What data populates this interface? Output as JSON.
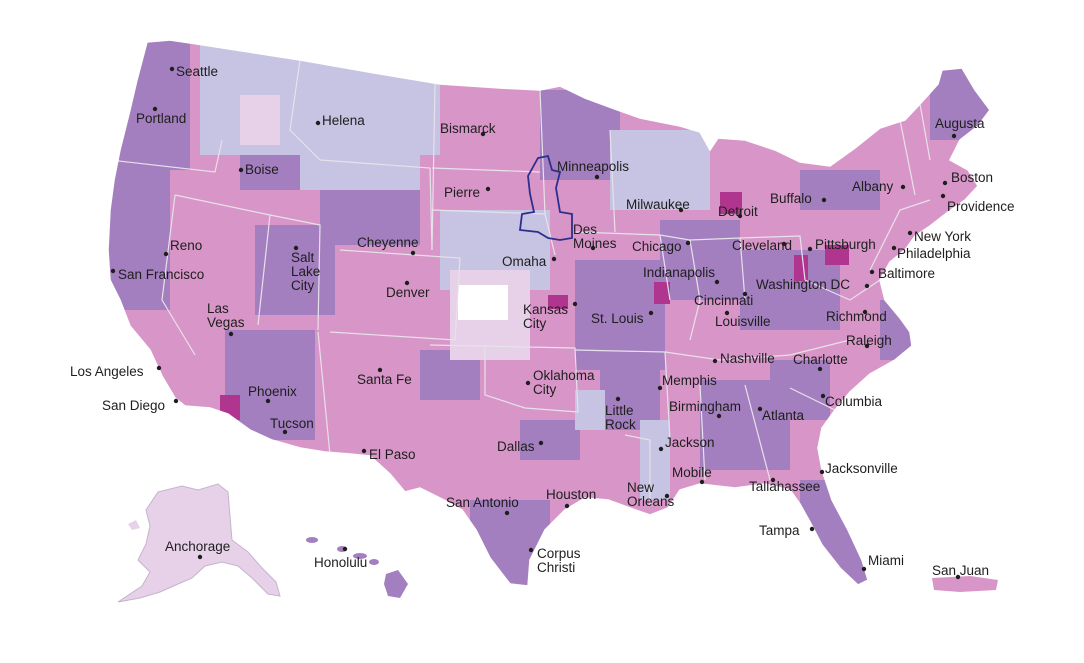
{
  "map": {
    "colors": {
      "darkest": "#b0358f",
      "dark": "#a47fbf",
      "medium": "#d896c8",
      "light": "#c7c3e2",
      "pale": "#e7d1e8",
      "white": "#ffffff",
      "highlight_outline": "#2e2e8c"
    },
    "cities": [
      {
        "name": "Seattle"
      },
      {
        "name": "Portland"
      },
      {
        "name": "Boise"
      },
      {
        "name": "Helena"
      },
      {
        "name": "Bismarck"
      },
      {
        "name": "Minneapolis"
      },
      {
        "name": "Pierre"
      },
      {
        "name": "Augusta"
      },
      {
        "name": "Boston"
      },
      {
        "name": "Providence"
      },
      {
        "name": "Albany"
      },
      {
        "name": "Buffalo"
      },
      {
        "name": "Detroit"
      },
      {
        "name": "Milwaukee"
      },
      {
        "name": "Des Moines"
      },
      {
        "name": "Chicago"
      },
      {
        "name": "Cleveland"
      },
      {
        "name": "Pittsburgh"
      },
      {
        "name": "New York"
      },
      {
        "name": "Philadelphia"
      },
      {
        "name": "Baltimore"
      },
      {
        "name": "Washington DC"
      },
      {
        "name": "Reno"
      },
      {
        "name": "San Francisco"
      },
      {
        "name": "Salt Lake City"
      },
      {
        "name": "Cheyenne"
      },
      {
        "name": "Omaha"
      },
      {
        "name": "Indianapolis"
      },
      {
        "name": "Denver"
      },
      {
        "name": "Las Vegas"
      },
      {
        "name": "Kansas City"
      },
      {
        "name": "St. Louis"
      },
      {
        "name": "Cincinnati"
      },
      {
        "name": "Louisville"
      },
      {
        "name": "Richmond"
      },
      {
        "name": "Raleigh"
      },
      {
        "name": "Los Angeles"
      },
      {
        "name": "San Diego"
      },
      {
        "name": "Phoenix"
      },
      {
        "name": "Tucson"
      },
      {
        "name": "Santa Fe"
      },
      {
        "name": "Oklahoma City"
      },
      {
        "name": "Nashville"
      },
      {
        "name": "Charlotte"
      },
      {
        "name": "Memphis"
      },
      {
        "name": "Little Rock"
      },
      {
        "name": "Birmingham"
      },
      {
        "name": "Atlanta"
      },
      {
        "name": "Columbia"
      },
      {
        "name": "El Paso"
      },
      {
        "name": "Dallas"
      },
      {
        "name": "Jackson"
      },
      {
        "name": "Jacksonville"
      },
      {
        "name": "Mobile"
      },
      {
        "name": "Tallahassee"
      },
      {
        "name": "New Orleans"
      },
      {
        "name": "San Antonio"
      },
      {
        "name": "Houston"
      },
      {
        "name": "Tampa"
      },
      {
        "name": "Corpus Christi"
      },
      {
        "name": "Miami"
      },
      {
        "name": "Anchorage"
      },
      {
        "name": "Honolulu"
      },
      {
        "name": "San Juan"
      }
    ]
  }
}
